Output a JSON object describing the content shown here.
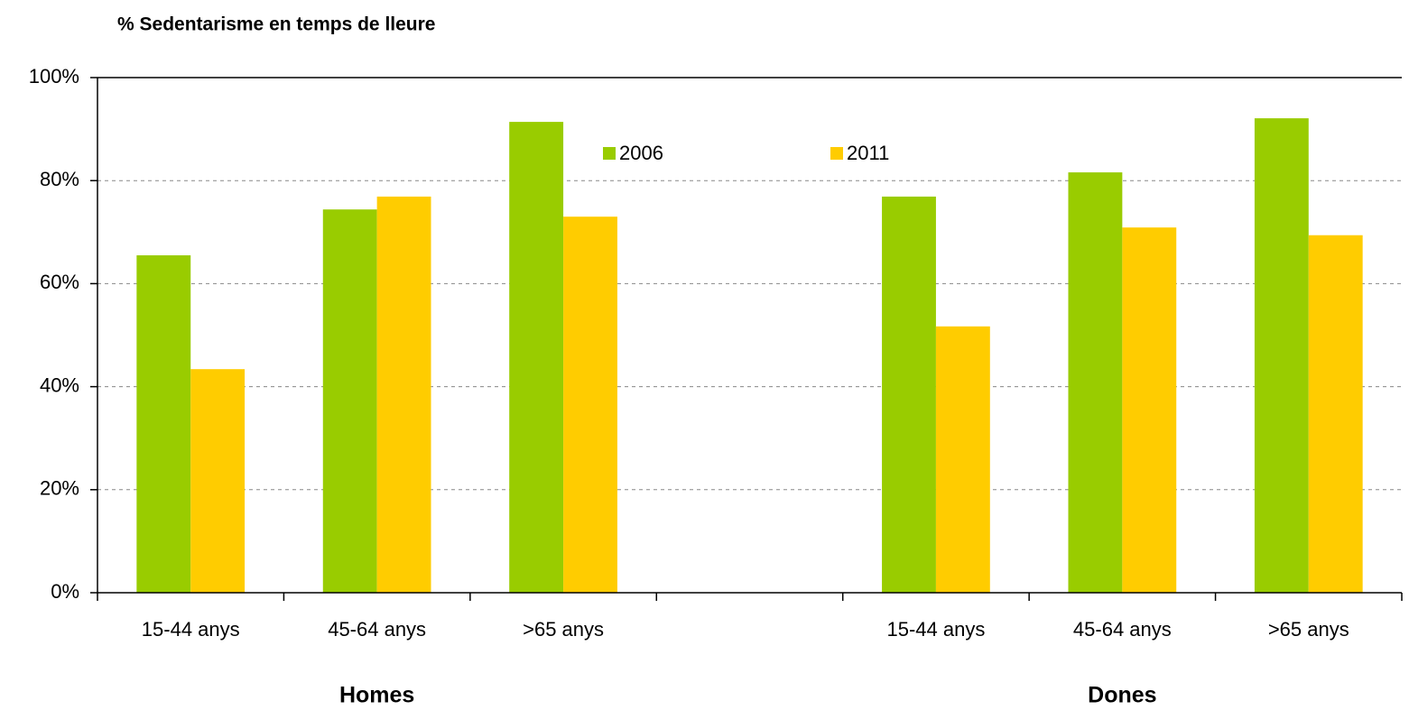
{
  "chart_data": {
    "type": "bar",
    "title": "% Sedentarisme en temps de lleure",
    "categories": [
      "15-44 anys",
      "45-64 anys",
      ">65 anys",
      null,
      "15-44 anys",
      "45-64 anys",
      ">65 anys"
    ],
    "group_labels": [
      "Homes",
      "Dones"
    ],
    "series": [
      {
        "name": "2006",
        "color": "#99cc00",
        "values": [
          65.5,
          74.4,
          91.4,
          null,
          76.9,
          81.6,
          92.1
        ]
      },
      {
        "name": "2011",
        "color": "#ffcc00",
        "values": [
          43.4,
          76.9,
          73.0,
          null,
          51.7,
          70.9,
          69.4
        ]
      }
    ],
    "ylim": [
      0,
      100
    ],
    "yticks": [
      {
        "value": 0,
        "label": "0%"
      },
      {
        "value": 20,
        "label": "20%"
      },
      {
        "value": 40,
        "label": "40%"
      },
      {
        "value": 60,
        "label": "60%"
      },
      {
        "value": 80,
        "label": "80%"
      },
      {
        "value": 100,
        "label": "100%"
      }
    ],
    "grid": true,
    "legend": "top"
  }
}
